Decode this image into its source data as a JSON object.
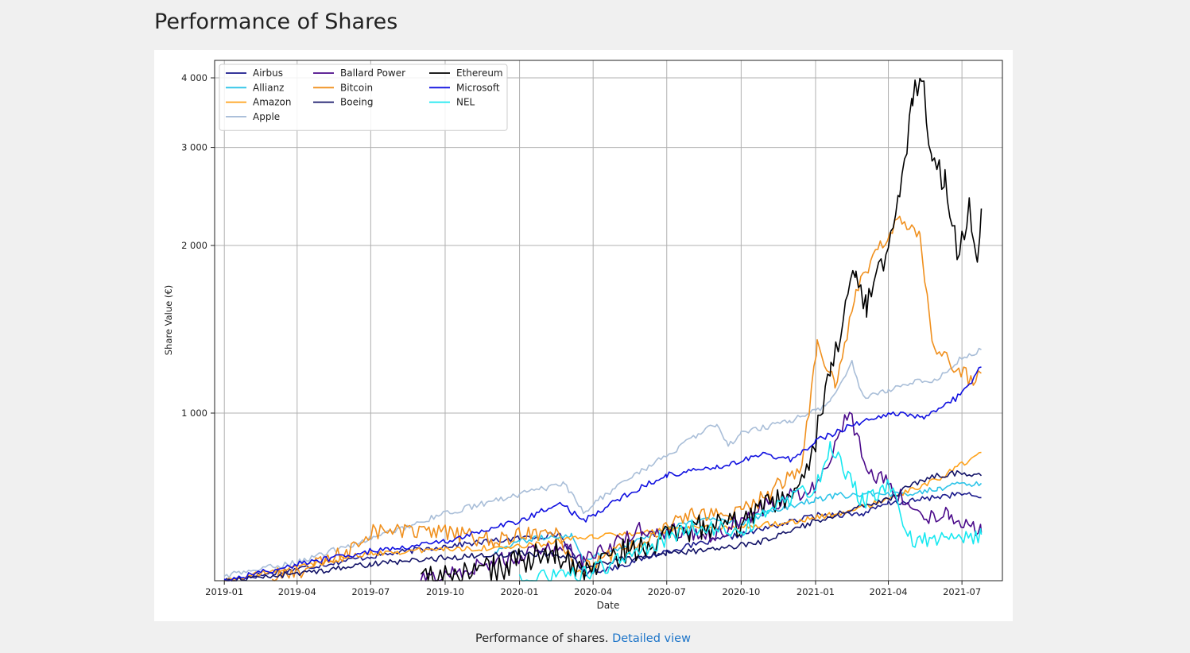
{
  "page": {
    "title": "Performance of Shares"
  },
  "caption": {
    "text": "Performance of shares.",
    "link_label": "Detailed view",
    "link_color": "#1a73c8"
  },
  "chart_data": {
    "type": "line",
    "title": "",
    "xlabel": "Date",
    "ylabel": "Share Value (€)",
    "x_range": [
      "2018-12-20",
      "2021-08-20"
    ],
    "ylim": [
      500,
      4300
    ],
    "yscale": "log",
    "grid": true,
    "legend_position": "top-left",
    "legend_columns": 3,
    "x_ticks": [
      "2019-01",
      "2019-04",
      "2019-07",
      "2019-10",
      "2020-01",
      "2020-04",
      "2020-07",
      "2020-10",
      "2021-01",
      "2021-04",
      "2021-07"
    ],
    "y_ticks": [
      {
        "value": 1000,
        "label": "1 000"
      },
      {
        "value": 2000,
        "label": "2 000"
      },
      {
        "value": 3000,
        "label": "3 000"
      },
      {
        "value": 4000,
        "label": "4 000"
      }
    ],
    "series": [
      {
        "name": "Airbus",
        "color": "#1a1a8c",
        "points": [
          [
            "2019-01-01",
            500
          ],
          [
            "2019-04-01",
            525
          ],
          [
            "2019-07-01",
            553
          ],
          [
            "2019-10-01",
            577
          ],
          [
            "2020-01-01",
            596
          ],
          [
            "2020-02-20",
            606
          ],
          [
            "2020-03-20",
            515
          ],
          [
            "2020-05-01",
            530
          ],
          [
            "2020-07-01",
            565
          ],
          [
            "2020-10-01",
            605
          ],
          [
            "2021-01-01",
            655
          ],
          [
            "2021-03-01",
            660
          ],
          [
            "2021-04-01",
            688
          ],
          [
            "2021-05-01",
            695
          ],
          [
            "2021-06-01",
            708
          ],
          [
            "2021-07-01",
            716
          ],
          [
            "2021-07-25",
            705
          ]
        ]
      },
      {
        "name": "Allianz",
        "color": "#2ec4e8",
        "points": [
          [
            "2019-12-01",
            565
          ],
          [
            "2020-01-01",
            590
          ],
          [
            "2020-03-05",
            605
          ],
          [
            "2020-03-20",
            545
          ],
          [
            "2020-05-01",
            570
          ],
          [
            "2020-07-01",
            623
          ],
          [
            "2020-09-01",
            647
          ],
          [
            "2020-10-01",
            635
          ],
          [
            "2020-11-15",
            672
          ],
          [
            "2021-01-01",
            700
          ],
          [
            "2021-02-01",
            712
          ],
          [
            "2021-03-01",
            713
          ],
          [
            "2021-04-01",
            712
          ],
          [
            "2021-05-01",
            720
          ],
          [
            "2021-06-01",
            733
          ],
          [
            "2021-07-01",
            745
          ],
          [
            "2021-07-25",
            748
          ]
        ]
      },
      {
        "name": "Amazon",
        "color": "#ffa21a",
        "points": [
          [
            "2019-01-01",
            500
          ],
          [
            "2019-04-01",
            530
          ],
          [
            "2019-07-01",
            560
          ],
          [
            "2019-10-01",
            570
          ],
          [
            "2020-01-01",
            575
          ],
          [
            "2020-04-01",
            600
          ],
          [
            "2020-06-01",
            610
          ],
          [
            "2020-08-01",
            620
          ],
          [
            "2020-10-01",
            625
          ],
          [
            "2020-12-01",
            638
          ],
          [
            "2021-02-01",
            660
          ],
          [
            "2021-04-01",
            700
          ],
          [
            "2021-06-01",
            760
          ],
          [
            "2021-07-25",
            850
          ]
        ]
      },
      {
        "name": "Apple",
        "color": "#a9bed8",
        "points": [
          [
            "2019-01-01",
            510
          ],
          [
            "2019-04-01",
            540
          ],
          [
            "2019-07-01",
            595
          ],
          [
            "2019-10-01",
            660
          ],
          [
            "2020-01-01",
            715
          ],
          [
            "2020-02-25",
            745
          ],
          [
            "2020-03-20",
            665
          ],
          [
            "2020-05-01",
            740
          ],
          [
            "2020-07-01",
            840
          ],
          [
            "2020-09-01",
            960
          ],
          [
            "2020-09-15",
            875
          ],
          [
            "2020-10-01",
            920
          ],
          [
            "2020-12-01",
            970
          ],
          [
            "2021-01-01",
            1010
          ],
          [
            "2021-01-20",
            1050
          ],
          [
            "2021-02-15",
            1230
          ],
          [
            "2021-03-01",
            1070
          ],
          [
            "2021-04-01",
            1100
          ],
          [
            "2021-05-01",
            1140
          ],
          [
            "2021-06-01",
            1150
          ],
          [
            "2021-07-01",
            1260
          ],
          [
            "2021-07-25",
            1300
          ]
        ]
      },
      {
        "name": "Ballard Power",
        "color": "#4b0a8a",
        "points": [
          [
            "2019-09-01",
            500
          ],
          [
            "2019-12-01",
            540
          ],
          [
            "2020-03-01",
            580
          ],
          [
            "2020-03-20",
            540
          ],
          [
            "2020-06-01",
            620
          ],
          [
            "2020-09-01",
            605
          ],
          [
            "2020-11-01",
            680
          ],
          [
            "2021-01-01",
            740
          ],
          [
            "2021-01-25",
            880
          ],
          [
            "2021-02-12",
            1010
          ],
          [
            "2021-03-05",
            800
          ],
          [
            "2021-04-01",
            745
          ],
          [
            "2021-05-15",
            650
          ],
          [
            "2021-06-15",
            660
          ],
          [
            "2021-07-25",
            610
          ]
        ]
      },
      {
        "name": "Bitcoin",
        "color": "#f0901e",
        "points": [
          [
            "2019-03-01",
            500
          ],
          [
            "2019-06-01",
            560
          ],
          [
            "2019-07-01",
            615
          ],
          [
            "2019-10-01",
            610
          ],
          [
            "2019-12-01",
            590
          ],
          [
            "2020-02-15",
            620
          ],
          [
            "2020-03-15",
            520
          ],
          [
            "2020-05-01",
            560
          ],
          [
            "2020-08-01",
            655
          ],
          [
            "2020-10-01",
            660
          ],
          [
            "2020-11-15",
            740
          ],
          [
            "2020-12-15",
            810
          ],
          [
            "2021-01-03",
            1330
          ],
          [
            "2021-01-25",
            1120
          ],
          [
            "2021-02-20",
            1630
          ],
          [
            "2021-03-10",
            1860
          ],
          [
            "2021-04-15",
            2270
          ],
          [
            "2021-05-10",
            2080
          ],
          [
            "2021-05-25",
            1330
          ],
          [
            "2021-06-15",
            1240
          ],
          [
            "2021-07-15",
            1140
          ],
          [
            "2021-07-25",
            1180
          ]
        ]
      },
      {
        "name": "Boeing",
        "color": "#141468",
        "points": [
          [
            "2019-01-01",
            500
          ],
          [
            "2019-04-01",
            515
          ],
          [
            "2019-07-01",
            535
          ],
          [
            "2019-10-01",
            550
          ],
          [
            "2020-01-01",
            560
          ],
          [
            "2020-03-01",
            555
          ],
          [
            "2020-03-20",
            525
          ],
          [
            "2020-05-01",
            545
          ],
          [
            "2020-07-01",
            560
          ],
          [
            "2020-09-01",
            570
          ],
          [
            "2020-11-01",
            590
          ],
          [
            "2021-01-01",
            640
          ],
          [
            "2021-02-15",
            670
          ],
          [
            "2021-04-01",
            700
          ],
          [
            "2021-05-01",
            745
          ],
          [
            "2021-06-01",
            775
          ],
          [
            "2021-07-01",
            780
          ],
          [
            "2021-07-25",
            772
          ]
        ]
      },
      {
        "name": "Ethereum",
        "color": "#000000",
        "points": [
          [
            "2019-09-01",
            500
          ],
          [
            "2019-12-01",
            525
          ],
          [
            "2020-02-15",
            560
          ],
          [
            "2020-03-15",
            525
          ],
          [
            "2020-05-15",
            565
          ],
          [
            "2020-08-15",
            625
          ],
          [
            "2020-10-01",
            630
          ],
          [
            "2020-11-15",
            690
          ],
          [
            "2020-12-25",
            775
          ],
          [
            "2021-01-01",
            900
          ],
          [
            "2021-01-20",
            1200
          ],
          [
            "2021-02-20",
            1800
          ],
          [
            "2021-03-05",
            1550
          ],
          [
            "2021-04-01",
            1950
          ],
          [
            "2021-04-15",
            2400
          ],
          [
            "2021-05-01",
            3600
          ],
          [
            "2021-05-12",
            4150
          ],
          [
            "2021-05-25",
            2850
          ],
          [
            "2021-06-10",
            2600
          ],
          [
            "2021-06-25",
            1950
          ],
          [
            "2021-07-10",
            2300
          ],
          [
            "2021-07-20",
            1970
          ],
          [
            "2021-07-25",
            2330
          ]
        ]
      },
      {
        "name": "Microsoft",
        "color": "#1010e0",
        "points": [
          [
            "2019-01-01",
            500
          ],
          [
            "2019-04-01",
            535
          ],
          [
            "2019-07-01",
            565
          ],
          [
            "2019-10-01",
            588
          ],
          [
            "2020-01-01",
            640
          ],
          [
            "2020-02-20",
            690
          ],
          [
            "2020-03-20",
            640
          ],
          [
            "2020-05-01",
            700
          ],
          [
            "2020-07-01",
            775
          ],
          [
            "2020-09-01",
            800
          ],
          [
            "2020-11-01",
            845
          ],
          [
            "2020-12-01",
            825
          ],
          [
            "2021-01-01",
            890
          ],
          [
            "2021-02-15",
            950
          ],
          [
            "2021-04-01",
            1000
          ],
          [
            "2021-05-15",
            980
          ],
          [
            "2021-07-01",
            1080
          ],
          [
            "2021-07-25",
            1210
          ]
        ]
      },
      {
        "name": "NEL",
        "color": "#18e8f0",
        "points": [
          [
            "2020-01-01",
            500
          ],
          [
            "2020-03-01",
            510
          ],
          [
            "2020-04-01",
            520
          ],
          [
            "2020-06-01",
            570
          ],
          [
            "2020-08-01",
            625
          ],
          [
            "2020-10-01",
            615
          ],
          [
            "2020-12-01",
            700
          ],
          [
            "2021-01-01",
            735
          ],
          [
            "2021-01-20",
            870
          ],
          [
            "2021-03-01",
            690
          ],
          [
            "2021-04-01",
            748
          ],
          [
            "2021-05-01",
            590
          ],
          [
            "2021-06-15",
            590
          ],
          [
            "2021-07-15",
            600
          ],
          [
            "2021-07-25",
            605
          ]
        ]
      }
    ]
  }
}
